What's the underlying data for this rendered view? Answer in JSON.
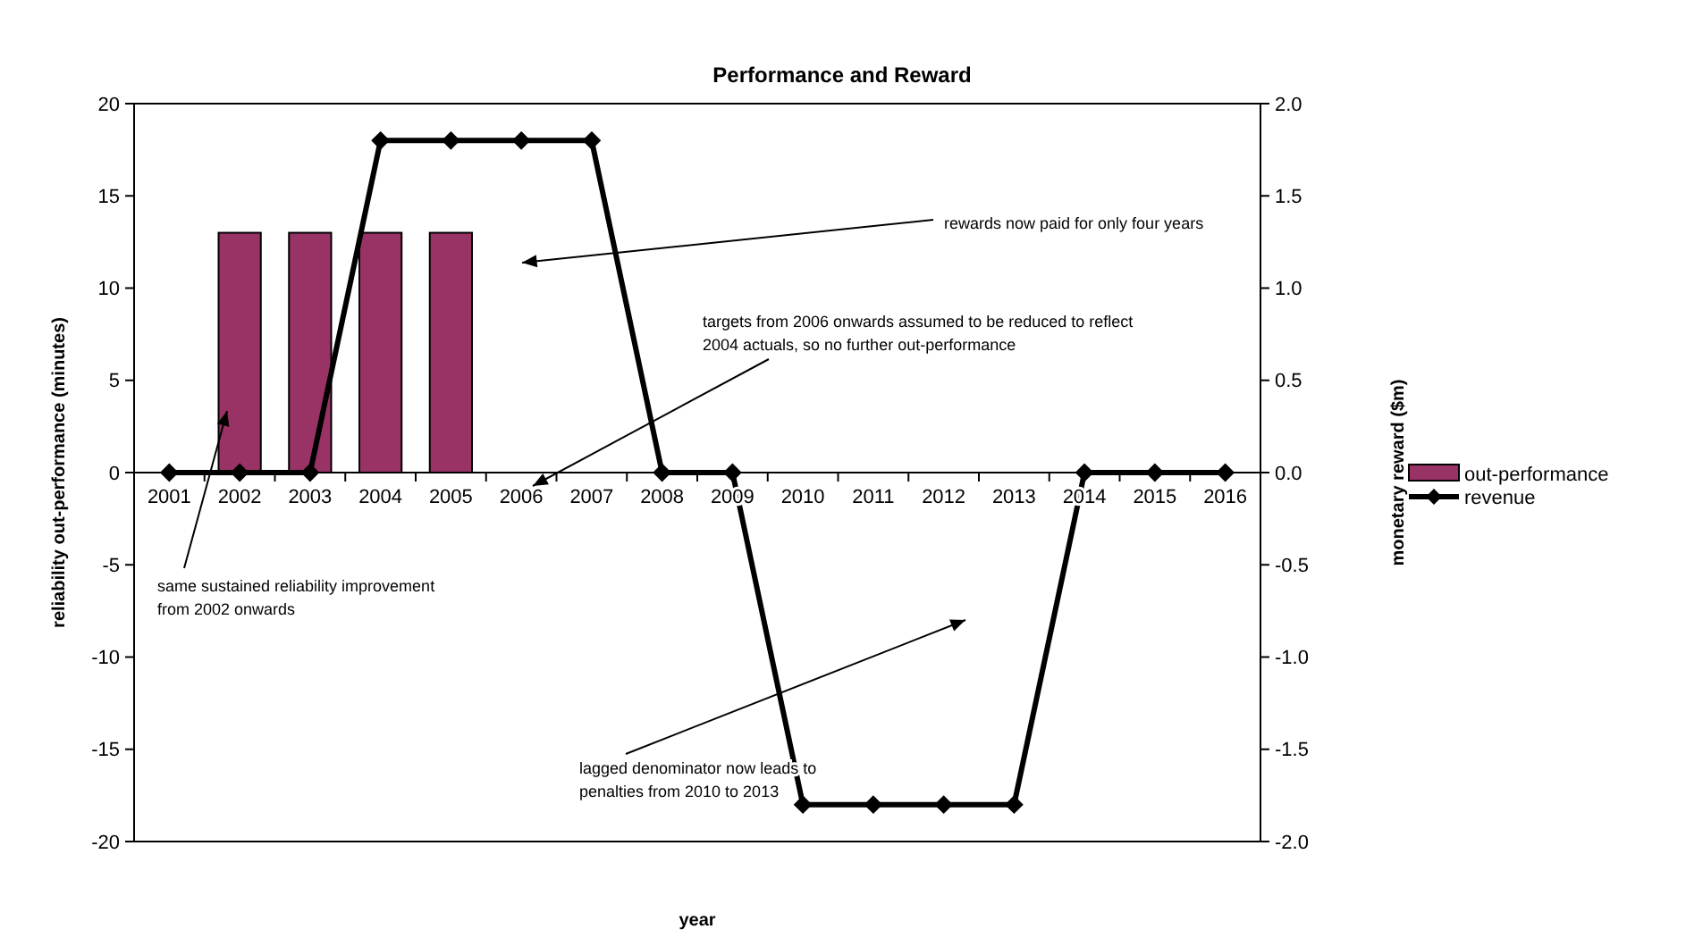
{
  "chart_data": {
    "type": "bar",
    "title": "Performance and Reward",
    "xlabel": "year",
    "ylabel": "reliability out-performance (minutes)",
    "y2label": "monetary reward ($m)",
    "categories": [
      "2001",
      "2002",
      "2003",
      "2004",
      "2005",
      "2006",
      "2007",
      "2008",
      "2009",
      "2010",
      "2011",
      "2012",
      "2013",
      "2014",
      "2015",
      "2016"
    ],
    "series": [
      {
        "name": "out-performance",
        "color": "#993366",
        "values": [
          0,
          13,
          13,
          13,
          13,
          0,
          0,
          0,
          0,
          0,
          0,
          0,
          0,
          0,
          0,
          0
        ]
      },
      {
        "name": "revenue",
        "type": "line",
        "axis": "y2",
        "color": "#000000",
        "marker": "diamond",
        "values": [
          0,
          0,
          0,
          1.8,
          1.8,
          1.8,
          1.8,
          0,
          0,
          -1.8,
          -1.8,
          -1.8,
          -1.8,
          0,
          0,
          0
        ]
      }
    ],
    "ylim": [
      -20,
      20
    ],
    "yticks": [
      -20,
      -15,
      -10,
      -5,
      0,
      5,
      10,
      15,
      20
    ],
    "y2lim": [
      -2,
      2
    ],
    "y2ticks": [
      {
        "value": -2,
        "label": "-2.0"
      },
      {
        "value": -1.5,
        "label": "-1.5"
      },
      {
        "value": -1,
        "label": "-1.0"
      },
      {
        "value": -0.5,
        "label": "-0.5"
      },
      {
        "value": 0,
        "label": "0.0"
      },
      {
        "value": 0.5,
        "label": "0.5"
      },
      {
        "value": 1,
        "label": "1.0"
      },
      {
        "value": 1.5,
        "label": "1.5"
      },
      {
        "value": 2,
        "label": "2.0"
      }
    ],
    "grid": false,
    "legend": "right",
    "annotations": [
      "rewards now paid for only four years",
      "targets from 2006 onwards assumed to be reduced to reflect\n2004 actuals, so no further out-performance",
      "same sustained reliability improvement\nfrom 2002 onwards",
      "lagged denominator now leads to\npenalties from 2010 to 2013"
    ]
  }
}
